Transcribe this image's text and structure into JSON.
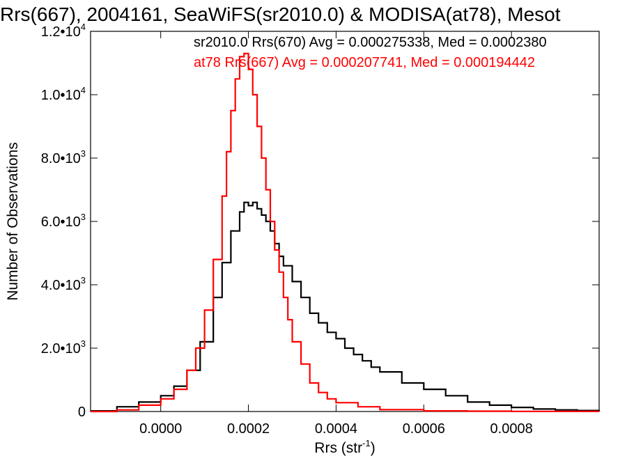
{
  "chart_data": {
    "type": "line",
    "title": "Rrs(667), 2004161, SeaWiFS(sr2010.0) & MODISA(at78), Mesot",
    "xlabel": "Rrs (str",
    "xlabel_sup": "-1",
    "xlabel_end": ")",
    "ylabel": "Number of Observations",
    "xlim": [
      -0.00016,
      0.001
    ],
    "ylim": [
      0,
      12000
    ],
    "x_ticks": [
      {
        "value": 0.0,
        "label": "0.0000"
      },
      {
        "value": 0.0002,
        "label": "0.0002"
      },
      {
        "value": 0.0004,
        "label": "0.0004"
      },
      {
        "value": 0.0006,
        "label": "0.0006"
      },
      {
        "value": 0.0008,
        "label": "0.0008"
      }
    ],
    "y_ticks": [
      {
        "value": 0,
        "mant": "0",
        "exp": ""
      },
      {
        "value": 2000,
        "mant": "2.0•10",
        "exp": "3"
      },
      {
        "value": 4000,
        "mant": "4.0•10",
        "exp": "3"
      },
      {
        "value": 6000,
        "mant": "6.0•10",
        "exp": "3"
      },
      {
        "value": 8000,
        "mant": "8.0•10",
        "exp": "3"
      },
      {
        "value": 10000,
        "mant": "1.0•10",
        "exp": "4"
      },
      {
        "value": 12000,
        "mant": "1.2•10",
        "exp": "4"
      }
    ],
    "grid": false,
    "series": [
      {
        "name": "sr2010.0 Rrs(670) Avg = 0.000275338, Med = 0.0002380",
        "color": "#000000",
        "step": true,
        "x": [
          -0.00016,
          -0.0001,
          -5e-05,
          0.0,
          3e-05,
          6e-05,
          9e-05,
          0.00012,
          0.00014,
          0.00016,
          0.00018,
          0.00019,
          0.0002,
          0.00021,
          0.00022,
          0.00023,
          0.00024,
          0.00025,
          0.00026,
          0.00027,
          0.00028,
          0.0003,
          0.00032,
          0.00034,
          0.00036,
          0.00038,
          0.0004,
          0.00042,
          0.00044,
          0.00046,
          0.00048,
          0.0005,
          0.00055,
          0.0006,
          0.00065,
          0.0007,
          0.00075,
          0.0008,
          0.00085,
          0.0009,
          0.00095,
          0.001
        ],
        "y": [
          20,
          150,
          300,
          500,
          800,
          1300,
          2200,
          3600,
          4700,
          5700,
          6300,
          6600,
          6500,
          6600,
          6400,
          6200,
          6000,
          5700,
          5300,
          4900,
          4600,
          4100,
          3600,
          3100,
          2800,
          2500,
          2300,
          2000,
          1800,
          1600,
          1400,
          1250,
          900,
          700,
          500,
          300,
          200,
          130,
          80,
          50,
          30,
          20
        ]
      },
      {
        "name": "at78 Rrs(667) Avg = 0.000207741, Med = 0.000194442",
        "color": "#ff0000",
        "step": true,
        "x": [
          -0.00016,
          -0.0001,
          -5e-05,
          0.0,
          3e-05,
          6e-05,
          8e-05,
          0.0001,
          0.00012,
          0.00014,
          0.00015,
          0.00016,
          0.00017,
          0.00018,
          0.00019,
          0.0002,
          0.00021,
          0.00022,
          0.00023,
          0.00024,
          0.00025,
          0.00026,
          0.00027,
          0.00028,
          0.00029,
          0.0003,
          0.00032,
          0.00034,
          0.00036,
          0.00038,
          0.0004,
          0.00045,
          0.0005,
          0.0006,
          0.0007,
          0.0008,
          0.001
        ],
        "y": [
          0,
          50,
          200,
          400,
          700,
          1300,
          2000,
          3200,
          4800,
          6800,
          8200,
          9500,
          10500,
          11200,
          11300,
          10800,
          10000,
          9000,
          8000,
          7000,
          6000,
          5100,
          4400,
          3600,
          2900,
          2200,
          1500,
          900,
          600,
          400,
          280,
          150,
          60,
          20,
          10,
          5,
          0
        ]
      }
    ]
  }
}
